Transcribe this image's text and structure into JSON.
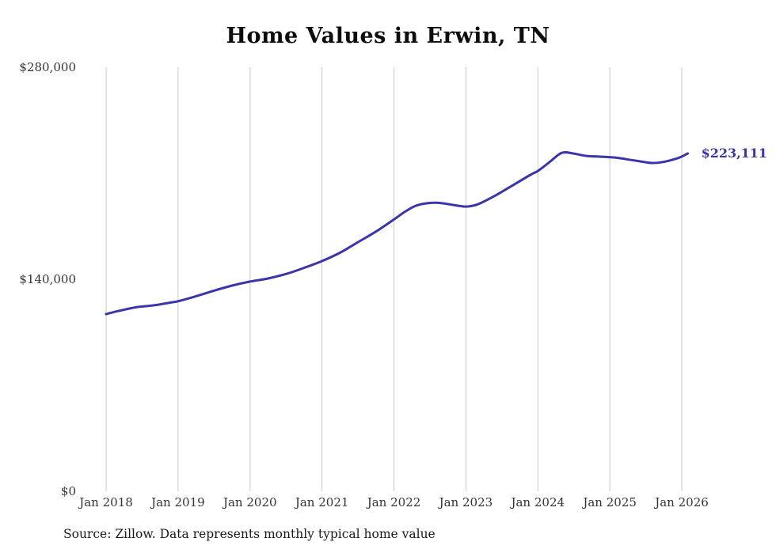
{
  "title": "Home Values in Erwin, TN",
  "source": "Source: Zillow. Data represents monthly typical home value",
  "end_label": "$223,111",
  "colors": {
    "line": "#3b35ab",
    "end_label": "#3b35ab",
    "grid": "#c9c9c9",
    "title": "#0d0d0d",
    "tick": "#333333",
    "background": "#ffffff"
  },
  "chart_data": {
    "type": "line",
    "title": "Home Values in Erwin, TN",
    "xlabel": "",
    "ylabel": "",
    "ylim": [
      0,
      280000
    ],
    "grid": "vertical-only",
    "legend": "none",
    "x_ticks": [
      "Jan 2018",
      "Jan 2019",
      "Jan 2020",
      "Jan 2021",
      "Jan 2022",
      "Jan 2023",
      "Jan 2024",
      "Jan 2025",
      "Jan 2026"
    ],
    "y_ticks": [
      {
        "label": "$0",
        "value": 0
      },
      {
        "label": "$140,000",
        "value": 140000
      },
      {
        "label": "$280,000",
        "value": 280000
      }
    ],
    "series": [
      {
        "name": "Typical home value",
        "points": [
          [
            "2018-01",
            117000
          ],
          [
            "2018-03",
            119000
          ],
          [
            "2018-06",
            121500
          ],
          [
            "2018-09",
            122800
          ],
          [
            "2018-12",
            124800
          ],
          [
            "2019-01",
            125500
          ],
          [
            "2019-04",
            128800
          ],
          [
            "2019-07",
            132500
          ],
          [
            "2019-10",
            135800
          ],
          [
            "2020-01",
            138500
          ],
          [
            "2020-04",
            140500
          ],
          [
            "2020-07",
            143500
          ],
          [
            "2020-10",
            147500
          ],
          [
            "2021-01",
            152000
          ],
          [
            "2021-04",
            157500
          ],
          [
            "2021-07",
            164500
          ],
          [
            "2021-10",
            171500
          ],
          [
            "2022-01",
            179500
          ],
          [
            "2022-03",
            185000
          ],
          [
            "2022-05",
            189000
          ],
          [
            "2022-08",
            190500
          ],
          [
            "2022-11",
            189000
          ],
          [
            "2023-01",
            188000
          ],
          [
            "2023-03",
            189500
          ],
          [
            "2023-06",
            195500
          ],
          [
            "2023-09",
            202500
          ],
          [
            "2023-12",
            209500
          ],
          [
            "2024-01",
            211500
          ],
          [
            "2024-03",
            217500
          ],
          [
            "2024-05",
            223500
          ],
          [
            "2024-07",
            223000
          ],
          [
            "2024-09",
            221500
          ],
          [
            "2024-12",
            220800
          ],
          [
            "2025-02",
            220300
          ],
          [
            "2025-05",
            218500
          ],
          [
            "2025-08",
            216800
          ],
          [
            "2025-10",
            217500
          ],
          [
            "2025-12",
            219500
          ],
          [
            "2026-01",
            221000
          ],
          [
            "2026-02",
            223111
          ]
        ]
      }
    ],
    "end_value": 223111
  }
}
